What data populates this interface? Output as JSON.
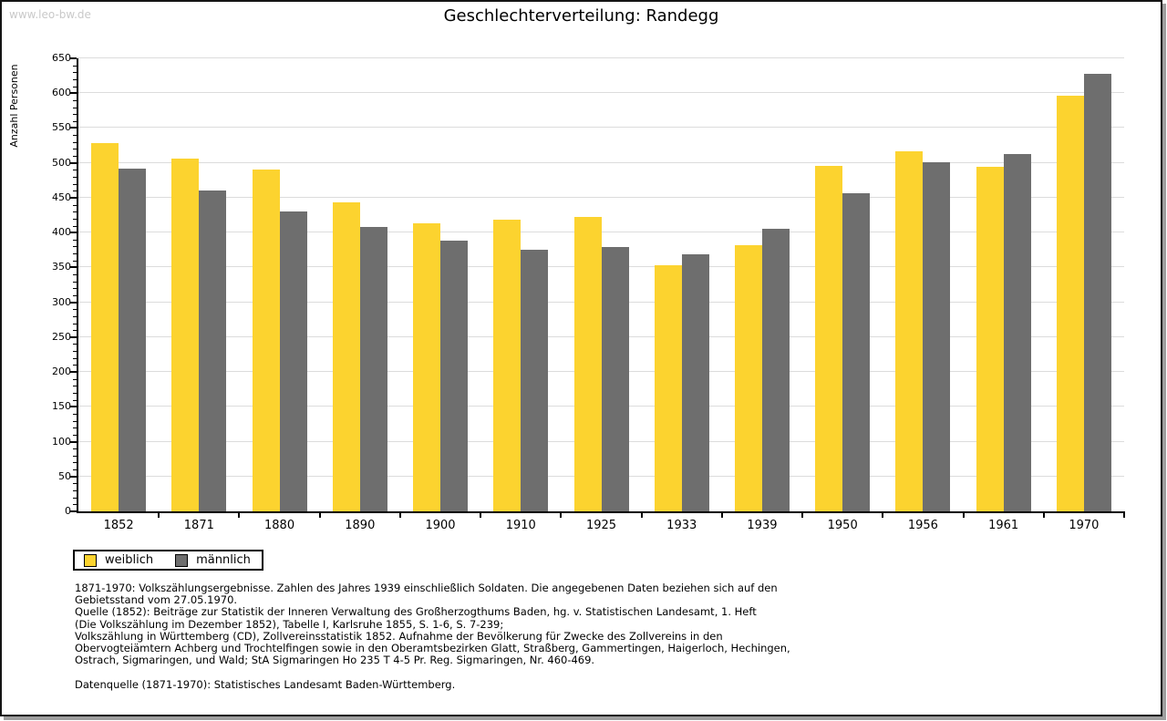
{
  "watermark": "www.leo-bw.de",
  "title": "Geschlechterverteilung: Randegg",
  "chart_data": {
    "type": "bar",
    "title": "Geschlechterverteilung: Randegg",
    "categories": [
      "1852",
      "1871",
      "1880",
      "1890",
      "1900",
      "1910",
      "1925",
      "1933",
      "1939",
      "1950",
      "1956",
      "1961",
      "1970"
    ],
    "series": [
      {
        "name": "weiblich",
        "color": "#FCD32F",
        "values": [
          528,
          506,
          491,
          444,
          413,
          419,
          423,
          353,
          382,
          496,
          516,
          495,
          597
        ]
      },
      {
        "name": "männlich",
        "color": "#6E6E6E",
        "values": [
          492,
          461,
          430,
          408,
          388,
          376,
          379,
          369,
          405,
          457,
          501,
          513,
          628
        ]
      }
    ],
    "xlabel": "",
    "ylabel": "Anzahl Personen",
    "ylim": [
      0,
      650
    ],
    "ytick_major": 50,
    "ytick_minor": 10,
    "grid": true,
    "legend_position": "bottom-left"
  },
  "legend": {
    "items": [
      {
        "label": "weiblich",
        "color": "#FCD32F"
      },
      {
        "label": "männlich",
        "color": "#6E6E6E"
      }
    ]
  },
  "notes": {
    "lines": [
      "1871-1970: Volkszählungsergebnisse. Zahlen des Jahres 1939 einschließlich Soldaten. Die angegebenen Daten beziehen sich auf den",
      "Gebietsstand vom 27.05.1970.",
      "Quelle (1852): Beiträge zur Statistik der Inneren Verwaltung des Großherzogthums Baden, hg. v. Statistischen Landesamt, 1. Heft",
      "(Die Volkszählung im Dezember 1852), Tabelle I, Karlsruhe 1855, S. 1-6, S. 7-239;",
      "Volkszählung in Württemberg (CD), Zollvereinsstatistik 1852. Aufnahme der Bevölkerung für Zwecke des Zollvereins in den",
      "Obervogteiämtern Achberg und Trochtelfingen sowie in den Oberamtsbezirken Glatt, Straßberg, Gammertingen, Haigerloch, Hechingen,",
      "Ostrach, Sigmaringen, und Wald; StA Sigmaringen Ho 235 T 4-5 Pr. Reg. Sigmaringen, Nr. 460-469.",
      "",
      "Datenquelle (1871-1970): Statistisches Landesamt Baden-Württemberg."
    ]
  },
  "colors": {
    "bar_female": "#FCD32F",
    "bar_male": "#6E6E6E",
    "gridline": "#DCDCDC",
    "axis": "#000000",
    "frame_border": "#141414",
    "frame_shadow": "#9E9E9E",
    "watermark": "#C9C9C9"
  }
}
